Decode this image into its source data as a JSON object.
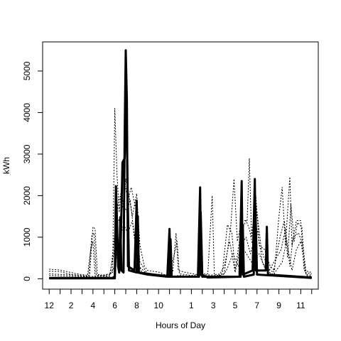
{
  "chart_data": {
    "type": "line",
    "xlabel": "Hours of Day",
    "ylabel": "kWh",
    "ylim": [
      -250,
      5700
    ],
    "xlim": [
      -0.6,
      24.6
    ],
    "grid": false,
    "x_ticks": {
      "positions": [
        0,
        1,
        2,
        3,
        4,
        5,
        6,
        7,
        8,
        9,
        10,
        11,
        12,
        13,
        14,
        15,
        16,
        17,
        18,
        19,
        20,
        21,
        22,
        23,
        24
      ],
      "labels": [
        {
          "x": 0,
          "text": "12"
        },
        {
          "x": 2,
          "text": "2"
        },
        {
          "x": 4,
          "text": "4"
        },
        {
          "x": 6,
          "text": "6"
        },
        {
          "x": 8,
          "text": "8"
        },
        {
          "x": 10,
          "text": "10"
        },
        {
          "x": 13,
          "text": "1"
        },
        {
          "x": 15,
          "text": "3"
        },
        {
          "x": 17,
          "text": "5"
        },
        {
          "x": 19,
          "text": "7"
        },
        {
          "x": 21,
          "text": "9"
        },
        {
          "x": 23,
          "text": "11"
        }
      ]
    },
    "y_ticks": [
      {
        "value": 0,
        "text": "0"
      },
      {
        "value": 1000,
        "text": "1000"
      },
      {
        "value": 2000,
        "text": "2000"
      },
      {
        "value": 3000,
        "text": "3000"
      },
      {
        "value": 4000,
        "text": "4000"
      },
      {
        "value": 5000,
        "text": "5000"
      }
    ],
    "series": [
      {
        "style": "solid",
        "points": [
          [
            0,
            20
          ],
          [
            5.8,
            20
          ],
          [
            6.0,
            60
          ],
          [
            6.1,
            2230
          ],
          [
            6.2,
            1400
          ],
          [
            6.3,
            300
          ],
          [
            6.4,
            150
          ],
          [
            6.5,
            1480
          ],
          [
            6.6,
            200
          ],
          [
            6.8,
            150
          ],
          [
            6.9,
            3500
          ],
          [
            7.0,
            5500
          ],
          [
            7.1,
            4300
          ],
          [
            7.2,
            300
          ],
          [
            7.8,
            200
          ],
          [
            8.0,
            1880
          ],
          [
            8.1,
            150
          ],
          [
            9.0,
            100
          ],
          [
            10.8,
            50
          ],
          [
            11.0,
            1200
          ],
          [
            11.1,
            50
          ],
          [
            13.6,
            50
          ],
          [
            13.8,
            2200
          ],
          [
            13.9,
            100
          ],
          [
            14.5,
            30
          ],
          [
            17.4,
            50
          ],
          [
            17.6,
            2350
          ],
          [
            17.7,
            100
          ],
          [
            18.6,
            200
          ],
          [
            18.8,
            2400
          ],
          [
            18.9,
            200
          ],
          [
            19.8,
            200
          ],
          [
            19.9,
            1250
          ],
          [
            20.0,
            100
          ],
          [
            24,
            30
          ]
        ]
      },
      {
        "style": "solid",
        "points": [
          [
            0,
            10
          ],
          [
            6.0,
            10
          ],
          [
            6.15,
            1200
          ],
          [
            6.3,
            800
          ],
          [
            6.5,
            300
          ],
          [
            6.7,
            2800
          ],
          [
            6.9,
            2900
          ],
          [
            7.05,
            4400
          ],
          [
            7.15,
            2500
          ],
          [
            7.3,
            200
          ],
          [
            8.0,
            150
          ],
          [
            8.1,
            1500
          ],
          [
            8.2,
            150
          ],
          [
            11.0,
            50
          ],
          [
            11.1,
            950
          ],
          [
            11.2,
            50
          ],
          [
            13.7,
            50
          ],
          [
            13.85,
            1600
          ],
          [
            14.0,
            50
          ],
          [
            17.5,
            50
          ],
          [
            17.7,
            1300
          ],
          [
            17.8,
            50
          ],
          [
            18.7,
            100
          ],
          [
            18.85,
            1750
          ],
          [
            19.0,
            100
          ],
          [
            24,
            20
          ]
        ]
      },
      {
        "style": "dotted",
        "points": [
          [
            0,
            230
          ],
          [
            1,
            210
          ],
          [
            2,
            150
          ],
          [
            2.5,
            120
          ],
          [
            3,
            100
          ],
          [
            3.7,
            80
          ],
          [
            4.0,
            1250
          ],
          [
            4.2,
            1200
          ],
          [
            4.4,
            100
          ],
          [
            5.0,
            80
          ],
          [
            5.8,
            150
          ],
          [
            6.0,
            4100
          ],
          [
            6.2,
            2500
          ],
          [
            6.4,
            1600
          ],
          [
            6.6,
            2200
          ],
          [
            6.8,
            1700
          ],
          [
            7.0,
            2400
          ],
          [
            7.3,
            2000
          ],
          [
            7.6,
            1500
          ],
          [
            8.0,
            2050
          ],
          [
            8.3,
            800
          ],
          [
            8.7,
            300
          ],
          [
            9.0,
            200
          ],
          [
            10.2,
            150
          ],
          [
            10.6,
            80
          ],
          [
            11.3,
            150
          ],
          [
            11.6,
            1100
          ],
          [
            11.8,
            200
          ],
          [
            12.5,
            150
          ],
          [
            13.5,
            100
          ],
          [
            14.5,
            120
          ],
          [
            14.9,
            2000
          ],
          [
            15.1,
            100
          ],
          [
            16.0,
            120
          ],
          [
            16.6,
            1250
          ],
          [
            16.9,
            2400
          ],
          [
            17.2,
            900
          ],
          [
            17.6,
            1400
          ],
          [
            18.1,
            1400
          ],
          [
            18.3,
            2900
          ],
          [
            18.5,
            1000
          ],
          [
            18.9,
            2000
          ],
          [
            19.2,
            800
          ],
          [
            19.7,
            700
          ],
          [
            20.2,
            300
          ],
          [
            20.6,
            200
          ],
          [
            21.0,
            1500
          ],
          [
            21.3,
            2200
          ],
          [
            21.6,
            800
          ],
          [
            22.0,
            2450
          ],
          [
            22.2,
            800
          ],
          [
            22.6,
            1400
          ],
          [
            23.0,
            1400
          ],
          [
            23.3,
            200
          ],
          [
            24,
            150
          ]
        ]
      },
      {
        "style": "dotted",
        "points": [
          [
            0,
            180
          ],
          [
            1,
            170
          ],
          [
            2,
            100
          ],
          [
            3,
            80
          ],
          [
            3.6,
            60
          ],
          [
            3.9,
            1050
          ],
          [
            4.1,
            1100
          ],
          [
            4.3,
            80
          ],
          [
            5.6,
            100
          ],
          [
            6.0,
            1100
          ],
          [
            6.3,
            1800
          ],
          [
            6.6,
            2100
          ],
          [
            6.9,
            2300
          ],
          [
            7.2,
            1900
          ],
          [
            7.5,
            2200
          ],
          [
            7.9,
            1700
          ],
          [
            8.3,
            400
          ],
          [
            9.0,
            120
          ],
          [
            10.5,
            100
          ],
          [
            11.0,
            80
          ],
          [
            11.7,
            900
          ],
          [
            11.9,
            120
          ],
          [
            13.0,
            80
          ],
          [
            14.0,
            100
          ],
          [
            15.8,
            80
          ],
          [
            16.3,
            1300
          ],
          [
            16.7,
            1100
          ],
          [
            17.0,
            200
          ],
          [
            17.5,
            1100
          ],
          [
            18.0,
            1400
          ],
          [
            18.3,
            1200
          ],
          [
            18.6,
            800
          ],
          [
            19.0,
            1600
          ],
          [
            19.4,
            700
          ],
          [
            20.0,
            250
          ],
          [
            20.5,
            150
          ],
          [
            21.1,
            1000
          ],
          [
            21.5,
            1400
          ],
          [
            21.8,
            500
          ],
          [
            22.1,
            1800
          ],
          [
            22.4,
            900
          ],
          [
            22.7,
            1350
          ],
          [
            23.1,
            1250
          ],
          [
            23.4,
            150
          ],
          [
            24,
            120
          ]
        ]
      },
      {
        "style": "dotted",
        "points": [
          [
            0,
            120
          ],
          [
            2,
            90
          ],
          [
            3.5,
            60
          ],
          [
            3.8,
            700
          ],
          [
            4.0,
            900
          ],
          [
            4.2,
            60
          ],
          [
            5.5,
            70
          ],
          [
            5.9,
            600
          ],
          [
            6.2,
            1300
          ],
          [
            6.5,
            1500
          ],
          [
            6.8,
            1800
          ],
          [
            7.1,
            1600
          ],
          [
            7.4,
            1900
          ],
          [
            7.8,
            1000
          ],
          [
            8.2,
            300
          ],
          [
            9.0,
            100
          ],
          [
            11.0,
            60
          ],
          [
            12.0,
            80
          ],
          [
            13.0,
            60
          ],
          [
            14.0,
            80
          ],
          [
            15.5,
            60
          ],
          [
            16.0,
            300
          ],
          [
            16.5,
            900
          ],
          [
            17.0,
            150
          ],
          [
            17.5,
            800
          ],
          [
            18.0,
            1000
          ],
          [
            18.4,
            600
          ],
          [
            19.0,
            1200
          ],
          [
            19.5,
            400
          ],
          [
            20.0,
            150
          ],
          [
            21.2,
            700
          ],
          [
            21.6,
            1200
          ],
          [
            22.0,
            300
          ],
          [
            22.3,
            1000
          ],
          [
            22.8,
            1100
          ],
          [
            23.2,
            800
          ],
          [
            23.5,
            100
          ],
          [
            24,
            90
          ]
        ]
      },
      {
        "style": "dotted",
        "points": [
          [
            0,
            80
          ],
          [
            3,
            50
          ],
          [
            5.5,
            60
          ],
          [
            6.0,
            300
          ],
          [
            6.4,
            900
          ],
          [
            6.8,
            1300
          ],
          [
            7.2,
            1100
          ],
          [
            7.6,
            1400
          ],
          [
            8.0,
            500
          ],
          [
            8.5,
            120
          ],
          [
            10,
            80
          ],
          [
            12,
            60
          ],
          [
            14,
            60
          ],
          [
            15.8,
            60
          ],
          [
            16.2,
            200
          ],
          [
            16.8,
            600
          ],
          [
            17.3,
            300
          ],
          [
            17.8,
            700
          ],
          [
            18.5,
            400
          ],
          [
            19.2,
            600
          ],
          [
            19.8,
            200
          ],
          [
            20.5,
            100
          ],
          [
            21.3,
            400
          ],
          [
            21.7,
            900
          ],
          [
            22.2,
            200
          ],
          [
            22.6,
            700
          ],
          [
            23.0,
            900
          ],
          [
            23.5,
            80
          ],
          [
            24,
            60
          ]
        ]
      }
    ]
  }
}
